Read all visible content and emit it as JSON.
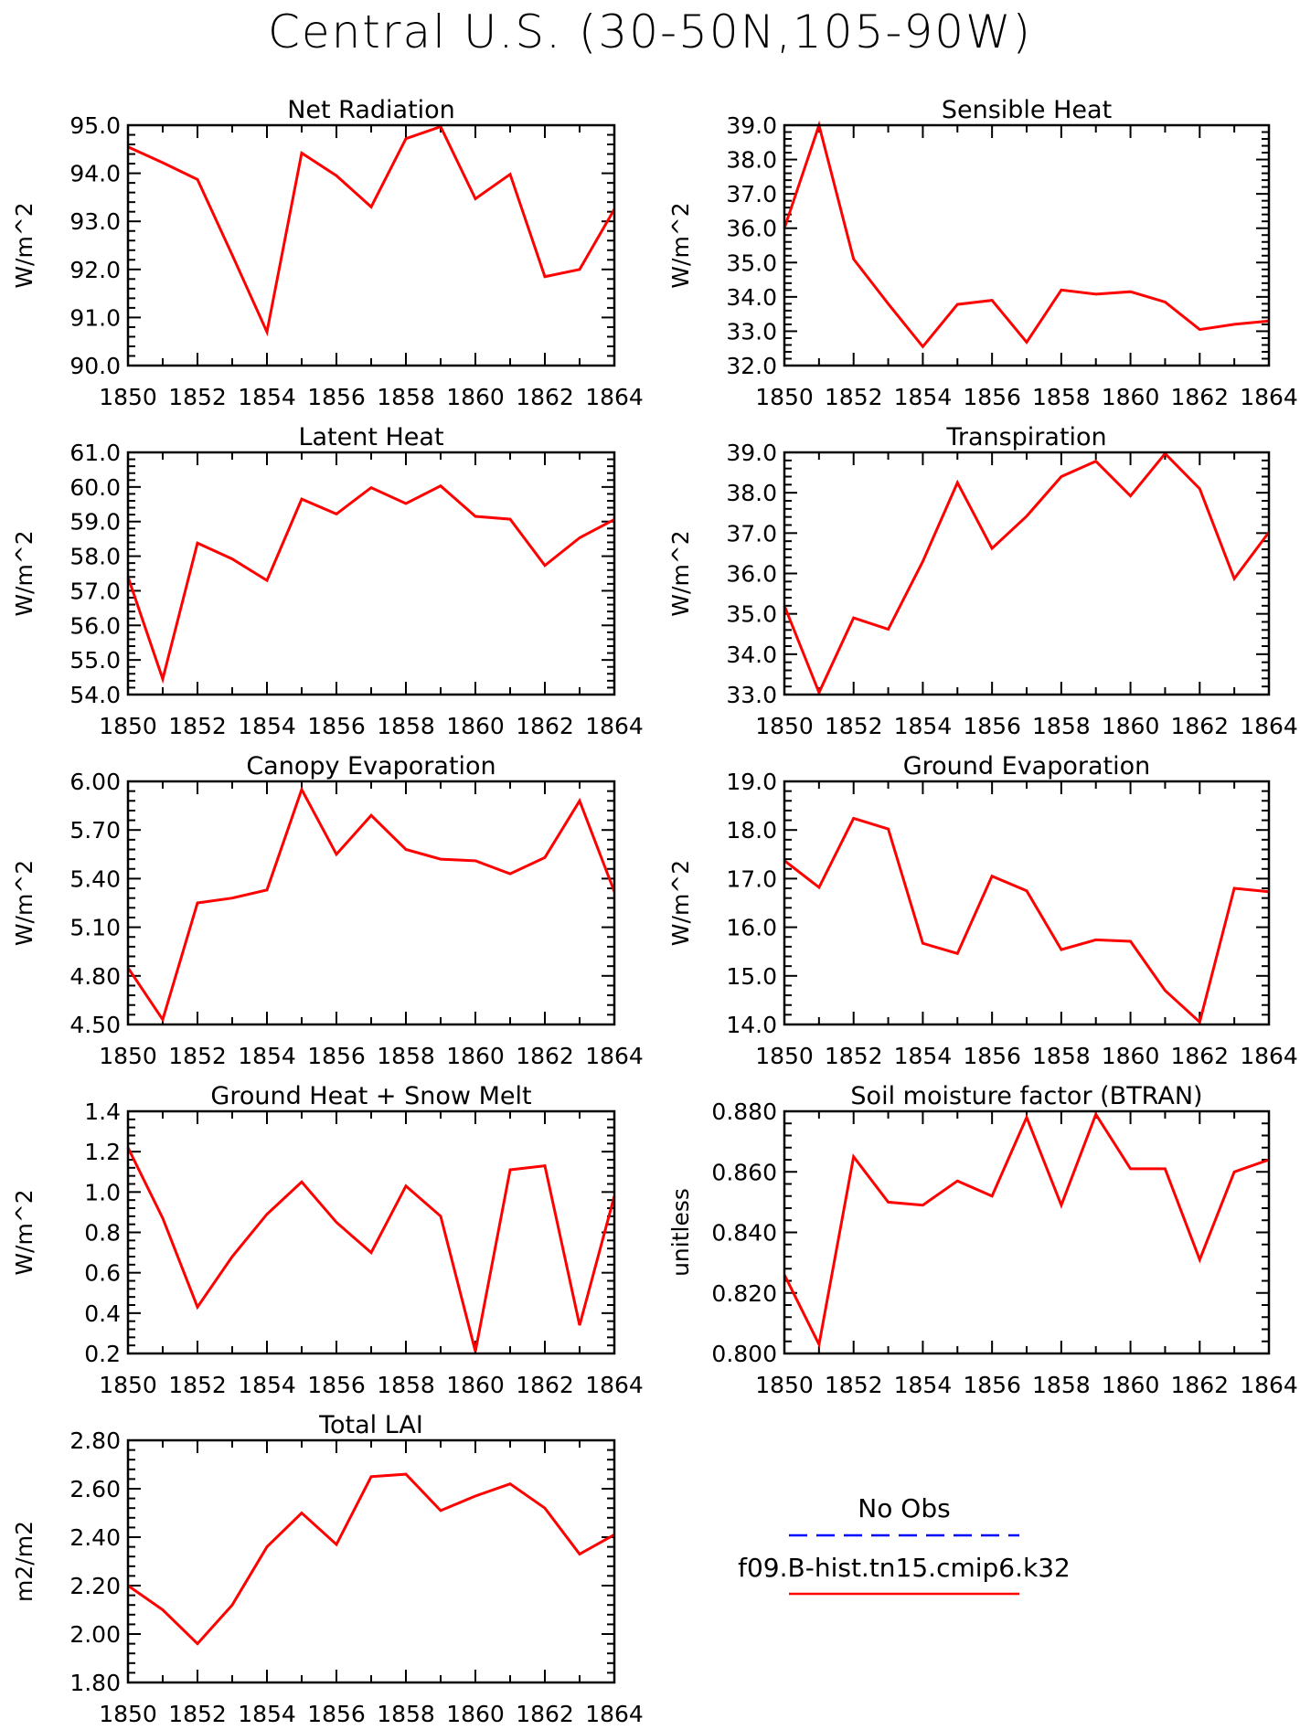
{
  "title": "Central U.S. (30-50N,105-90W)",
  "legend": {
    "obs_label": "No Obs",
    "obs_color": "#0000ff",
    "model_label": "f09.B-hist.tn15.cmip6.k32",
    "model_color": "#ff0000"
  },
  "chart_data": [
    {
      "type": "line",
      "title": "Net Radiation",
      "ylabel": "W/m^2",
      "xlabel": "",
      "x": [
        1850,
        1851,
        1852,
        1853,
        1854,
        1855,
        1856,
        1857,
        1858,
        1859,
        1860,
        1861,
        1862,
        1863,
        1864
      ],
      "series": [
        {
          "name": "f09.B-hist.tn15.cmip6.k32",
          "values": [
            94.55,
            94.22,
            93.87,
            92.3,
            90.7,
            94.42,
            93.95,
            93.3,
            94.72,
            94.97,
            93.47,
            93.98,
            91.85,
            92.0,
            93.25
          ]
        }
      ],
      "xlim": [
        1850,
        1864
      ],
      "ylim": [
        90.0,
        95.0
      ],
      "yticks": [
        "90.0",
        "91.0",
        "92.0",
        "93.0",
        "94.0",
        "95.0"
      ],
      "xticks": [
        "1850",
        "1852",
        "1854",
        "1856",
        "1858",
        "1860",
        "1862",
        "1864"
      ]
    },
    {
      "type": "line",
      "title": "Sensible Heat",
      "ylabel": "W/m^2",
      "xlabel": "",
      "x": [
        1850,
        1851,
        1852,
        1853,
        1854,
        1855,
        1856,
        1857,
        1858,
        1859,
        1860,
        1861,
        1862,
        1863,
        1864
      ],
      "series": [
        {
          "name": "f09.B-hist.tn15.cmip6.k32",
          "values": [
            36.0,
            39.0,
            35.1,
            33.8,
            32.55,
            33.78,
            33.9,
            32.68,
            34.2,
            34.08,
            34.15,
            33.85,
            33.05,
            33.2,
            33.3
          ]
        }
      ],
      "xlim": [
        1850,
        1864
      ],
      "ylim": [
        32.0,
        39.0
      ],
      "yticks": [
        "32.0",
        "33.0",
        "34.0",
        "35.0",
        "36.0",
        "37.0",
        "38.0",
        "39.0"
      ],
      "xticks": [
        "1850",
        "1852",
        "1854",
        "1856",
        "1858",
        "1860",
        "1862",
        "1864"
      ]
    },
    {
      "type": "line",
      "title": "Latent Heat",
      "ylabel": "W/m^2",
      "xlabel": "",
      "x": [
        1850,
        1851,
        1852,
        1853,
        1854,
        1855,
        1856,
        1857,
        1858,
        1859,
        1860,
        1861,
        1862,
        1863,
        1864
      ],
      "series": [
        {
          "name": "f09.B-hist.tn15.cmip6.k32",
          "values": [
            57.4,
            54.45,
            58.38,
            57.92,
            57.3,
            59.65,
            59.22,
            59.98,
            59.52,
            60.03,
            59.15,
            59.07,
            57.73,
            58.53,
            59.06
          ]
        }
      ],
      "xlim": [
        1850,
        1864
      ],
      "ylim": [
        54.0,
        61.0
      ],
      "yticks": [
        "54.0",
        "55.0",
        "56.0",
        "57.0",
        "58.0",
        "59.0",
        "60.0",
        "61.0"
      ],
      "xticks": [
        "1850",
        "1852",
        "1854",
        "1856",
        "1858",
        "1860",
        "1862",
        "1864"
      ]
    },
    {
      "type": "line",
      "title": "Transpiration",
      "ylabel": "W/m^2",
      "xlabel": "",
      "x": [
        1850,
        1851,
        1852,
        1853,
        1854,
        1855,
        1856,
        1857,
        1858,
        1859,
        1860,
        1861,
        1862,
        1863,
        1864
      ],
      "series": [
        {
          "name": "f09.B-hist.tn15.cmip6.k32",
          "values": [
            35.2,
            33.05,
            34.9,
            34.62,
            36.3,
            38.25,
            36.62,
            37.42,
            38.4,
            38.78,
            37.92,
            38.97,
            38.1,
            35.87,
            37.02
          ]
        }
      ],
      "xlim": [
        1850,
        1864
      ],
      "ylim": [
        33.0,
        39.0
      ],
      "yticks": [
        "33.0",
        "34.0",
        "35.0",
        "36.0",
        "37.0",
        "38.0",
        "39.0"
      ],
      "xticks": [
        "1850",
        "1852",
        "1854",
        "1856",
        "1858",
        "1860",
        "1862",
        "1864"
      ]
    },
    {
      "type": "line",
      "title": "Canopy Evaporation",
      "ylabel": "W/m^2",
      "xlabel": "",
      "x": [
        1850,
        1851,
        1852,
        1853,
        1854,
        1855,
        1856,
        1857,
        1858,
        1859,
        1860,
        1861,
        1862,
        1863,
        1864
      ],
      "series": [
        {
          "name": "f09.B-hist.tn15.cmip6.k32",
          "values": [
            4.85,
            4.53,
            5.25,
            5.28,
            5.33,
            5.95,
            5.55,
            5.79,
            5.58,
            5.52,
            5.51,
            5.43,
            5.53,
            5.88,
            5.32
          ]
        }
      ],
      "xlim": [
        1850,
        1864
      ],
      "ylim": [
        4.5,
        6.0
      ],
      "yticks": [
        "4.50",
        "4.80",
        "5.10",
        "5.40",
        "5.70",
        "6.00"
      ],
      "xticks": [
        "1850",
        "1852",
        "1854",
        "1856",
        "1858",
        "1860",
        "1862",
        "1864"
      ]
    },
    {
      "type": "line",
      "title": "Ground Evaporation",
      "ylabel": "W/m^2",
      "xlabel": "",
      "x": [
        1850,
        1851,
        1852,
        1853,
        1854,
        1855,
        1856,
        1857,
        1858,
        1859,
        1860,
        1861,
        1862,
        1863,
        1864
      ],
      "series": [
        {
          "name": "f09.B-hist.tn15.cmip6.k32",
          "values": [
            17.37,
            16.82,
            18.24,
            18.02,
            15.67,
            15.46,
            17.05,
            16.75,
            15.54,
            15.74,
            15.71,
            14.7,
            14.05,
            16.8,
            16.73
          ]
        }
      ],
      "xlim": [
        1850,
        1864
      ],
      "ylim": [
        14.0,
        19.0
      ],
      "yticks": [
        "14.0",
        "15.0",
        "16.0",
        "17.0",
        "18.0",
        "19.0"
      ],
      "xticks": [
        "1850",
        "1852",
        "1854",
        "1856",
        "1858",
        "1860",
        "1862",
        "1864"
      ]
    },
    {
      "type": "line",
      "title": "Ground Heat + Snow Melt",
      "ylabel": "W/m^2",
      "xlabel": "",
      "x": [
        1850,
        1851,
        1852,
        1853,
        1854,
        1855,
        1856,
        1857,
        1858,
        1859,
        1860,
        1861,
        1862,
        1863,
        1864
      ],
      "series": [
        {
          "name": "f09.B-hist.tn15.cmip6.k32",
          "values": [
            1.22,
            0.87,
            0.43,
            0.68,
            0.89,
            1.05,
            0.85,
            0.7,
            1.03,
            0.88,
            0.21,
            1.11,
            1.13,
            0.34,
            0.98
          ]
        }
      ],
      "xlim": [
        1850,
        1864
      ],
      "ylim": [
        0.2,
        1.4
      ],
      "yticks": [
        "0.2",
        "0.4",
        "0.6",
        "0.8",
        "1.0",
        "1.2",
        "1.4"
      ],
      "xticks": [
        "1850",
        "1852",
        "1854",
        "1856",
        "1858",
        "1860",
        "1862",
        "1864"
      ]
    },
    {
      "type": "line",
      "title": "Soil moisture factor (BTRAN)",
      "ylabel": "unitless",
      "xlabel": "",
      "x": [
        1850,
        1851,
        1852,
        1853,
        1854,
        1855,
        1856,
        1857,
        1858,
        1859,
        1860,
        1861,
        1862,
        1863,
        1864
      ],
      "series": [
        {
          "name": "f09.B-hist.tn15.cmip6.k32",
          "values": [
            0.826,
            0.803,
            0.865,
            0.85,
            0.849,
            0.857,
            0.852,
            0.878,
            0.849,
            0.879,
            0.861,
            0.861,
            0.831,
            0.86,
            0.864
          ]
        }
      ],
      "xlim": [
        1850,
        1864
      ],
      "ylim": [
        0.8,
        0.88
      ],
      "yticks": [
        "0.800",
        "0.820",
        "0.840",
        "0.860",
        "0.880"
      ],
      "xticks": [
        "1850",
        "1852",
        "1854",
        "1856",
        "1858",
        "1860",
        "1862",
        "1864"
      ]
    },
    {
      "type": "line",
      "title": "Total LAI",
      "ylabel": "m2/m2",
      "xlabel": "",
      "x": [
        1850,
        1851,
        1852,
        1853,
        1854,
        1855,
        1856,
        1857,
        1858,
        1859,
        1860,
        1861,
        1862,
        1863,
        1864
      ],
      "series": [
        {
          "name": "f09.B-hist.tn15.cmip6.k32",
          "values": [
            2.2,
            2.1,
            1.96,
            2.12,
            2.36,
            2.5,
            2.37,
            2.65,
            2.66,
            2.51,
            2.57,
            2.62,
            2.52,
            2.33,
            2.41
          ]
        }
      ],
      "xlim": [
        1850,
        1864
      ],
      "ylim": [
        1.8,
        2.8
      ],
      "yticks": [
        "1.80",
        "2.00",
        "2.20",
        "2.40",
        "2.60",
        "2.80"
      ],
      "xticks": [
        "1850",
        "1852",
        "1854",
        "1856",
        "1858",
        "1860",
        "1862",
        "1864"
      ]
    }
  ]
}
